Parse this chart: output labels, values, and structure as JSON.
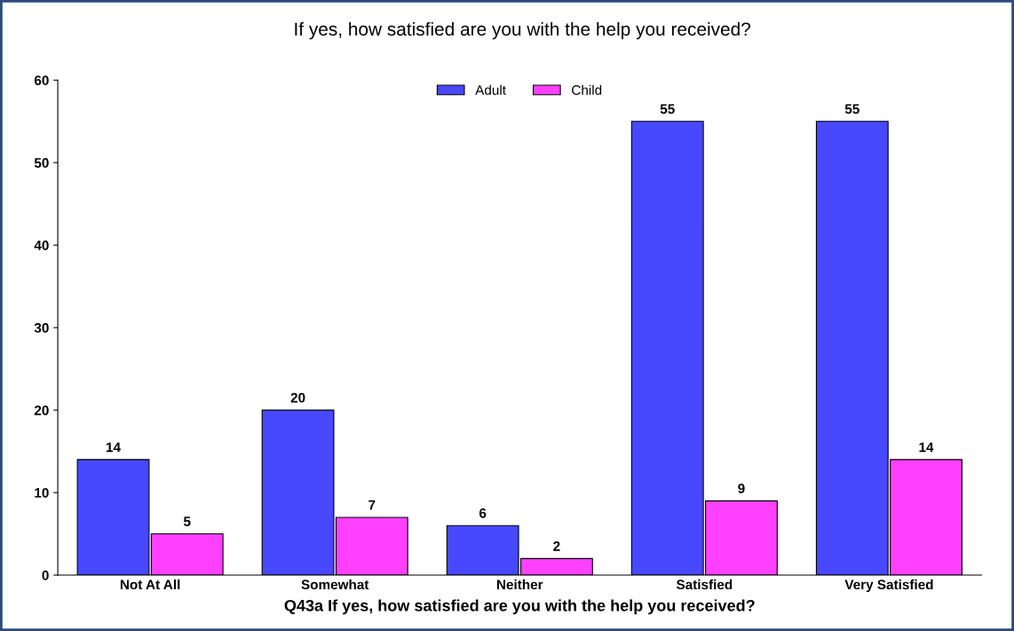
{
  "chart_data": {
    "type": "bar",
    "title": "If yes, how satisfied are you with the help you received?",
    "xlabel": "Q43a If yes, how satisfied are you with the help you received?",
    "categories": [
      "Not At All",
      "Somewhat",
      "Neither",
      "Satisfied",
      "Very Satisfied"
    ],
    "series": [
      {
        "name": "Adult",
        "color": "#4848ff",
        "values": [
          14,
          20,
          6,
          55,
          55
        ]
      },
      {
        "name": "Child",
        "color": "#ff40ff",
        "values": [
          5,
          7,
          2,
          9,
          14
        ]
      }
    ],
    "ylim": [
      0,
      60
    ],
    "yticks": [
      0,
      10,
      20,
      30,
      40,
      50,
      60
    ],
    "grid": false,
    "legend": "top",
    "data_labels": true
  }
}
